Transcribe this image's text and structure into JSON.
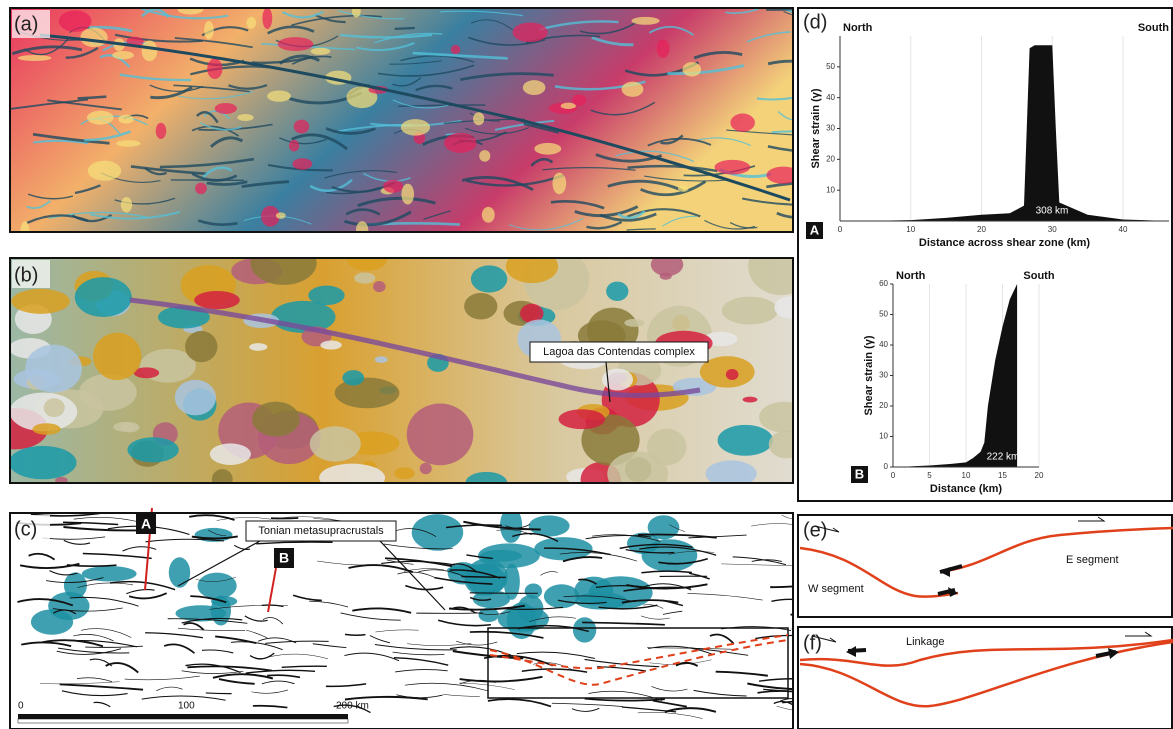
{
  "panels": {
    "a": {
      "label": "(a)"
    },
    "b": {
      "label": "(b)",
      "callout": "Lagoa das Contendas complex"
    },
    "c": {
      "label": "(c)",
      "profile_a": "A",
      "profile_b": "B",
      "callout": "Tonian metasupracrustals",
      "scale_labels": [
        "0",
        "100",
        "200 km"
      ]
    },
    "d": {
      "label": "(d)"
    },
    "e": {
      "label": "(e)",
      "west": "W segment",
      "east": "E segment"
    },
    "f": {
      "label": "(f)",
      "linkage": "Linkage"
    }
  },
  "profiles": [
    {
      "box_label": "A",
      "north": "North",
      "south": "South",
      "y_label": "Shear strain (γ)",
      "x_label": "Distance across shear zone (km)",
      "length_label": "308 km",
      "x": [
        0,
        5,
        10,
        15,
        20,
        24,
        26,
        26.8,
        27.5,
        30,
        30.5,
        31,
        35,
        40,
        46.5
      ],
      "y": [
        0,
        0.1,
        0.3,
        1,
        2,
        2.5,
        5,
        56,
        57,
        57,
        30,
        6,
        2,
        0.5,
        0
      ],
      "xlim": [
        0,
        46.5
      ],
      "ylim": [
        0,
        60
      ],
      "xticks": [
        0,
        10,
        20,
        30,
        40
      ],
      "yticks": [
        10,
        20,
        30,
        40,
        50
      ],
      "grid": true,
      "color": "#111111"
    },
    {
      "box_label": "B",
      "north": "North",
      "south": "South",
      "y_label": "Shear strain (γ)",
      "x_label": "Distance  (km)",
      "length_label": "222 km",
      "x": [
        1,
        3,
        5,
        8,
        10,
        11,
        12,
        12.5,
        13,
        14,
        15,
        16,
        17,
        17
      ],
      "y": [
        0,
        0.3,
        0.5,
        1,
        1.5,
        3,
        5,
        8,
        20,
        35,
        46,
        55,
        60,
        0
      ],
      "xlim": [
        0,
        20
      ],
      "ylim": [
        0,
        60
      ],
      "xticks": [
        0,
        5,
        10,
        15,
        20
      ],
      "yticks": [
        0,
        10,
        20,
        30,
        40,
        50,
        60
      ],
      "grid": true,
      "color": "#111111"
    }
  ]
}
